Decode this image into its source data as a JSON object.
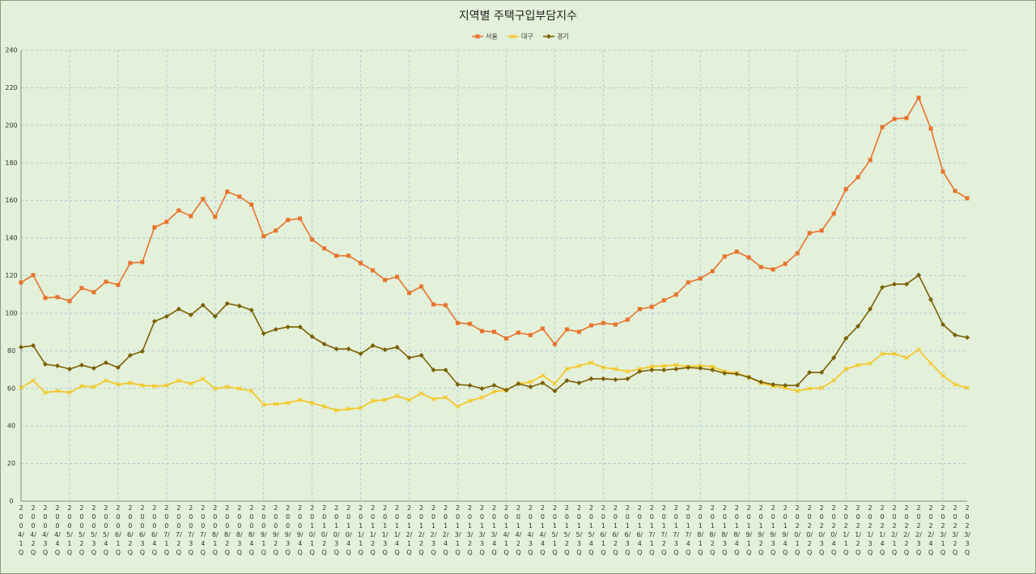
{
  "chart_data": {
    "type": "line",
    "title": "지역별 주택구입부담지수",
    "categories": [
      "2004/1Q",
      "2004/2Q",
      "2004/3Q",
      "2004/4Q",
      "2005/1Q",
      "2005/2Q",
      "2005/3Q",
      "2005/4Q",
      "2006/1Q",
      "2006/2Q",
      "2006/3Q",
      "2006/4Q",
      "2007/1Q",
      "2007/2Q",
      "2007/3Q",
      "2007/4Q",
      "2008/1Q",
      "2008/2Q",
      "2008/3Q",
      "2008/4Q",
      "2009/1Q",
      "2009/2Q",
      "2009/3Q",
      "2009/4Q",
      "2010/1Q",
      "2010/2Q",
      "2010/3Q",
      "2010/4Q",
      "2011/1Q",
      "2011/2Q",
      "2011/3Q",
      "2011/4Q",
      "2012/1Q",
      "2012/2Q",
      "2012/3Q",
      "2012/4Q",
      "2013/1Q",
      "2013/2Q",
      "2013/3Q",
      "2013/4Q",
      "2014/1Q",
      "2014/2Q",
      "2014/3Q",
      "2014/4Q",
      "2015/1Q",
      "2015/2Q",
      "2015/3Q",
      "2015/4Q",
      "2016/1Q",
      "2016/2Q",
      "2016/3Q",
      "2016/4Q",
      "2017/1Q",
      "2017/2Q",
      "2017/3Q",
      "2017/4Q",
      "2018/1Q",
      "2018/2Q",
      "2018/3Q",
      "2018/4Q",
      "2019/1Q",
      "2019/2Q",
      "2019/3Q",
      "2019/4Q",
      "2020/1Q",
      "2020/2Q",
      "2020/3Q",
      "2020/4Q",
      "2021/1Q",
      "2021/2Q",
      "2021/3Q",
      "2021/4Q",
      "2022/1Q",
      "2022/2Q",
      "2022/3Q",
      "2022/4Q",
      "2023/1Q",
      "2023/2Q",
      "2023/3Q"
    ],
    "series": [
      {
        "name": "서울",
        "color": "#e8732a",
        "marker": "square",
        "values": [
          116.4,
          120.3,
          108.2,
          108.6,
          106.5,
          113.4,
          111.2,
          116.8,
          115.1,
          126.7,
          127.2,
          145.7,
          148.7,
          154.7,
          151.7,
          160.8,
          151.3,
          164.7,
          162.1,
          157.8,
          141,
          144,
          149.6,
          150.4,
          139.2,
          134.5,
          130.6,
          130.6,
          126.7,
          122.8,
          117.7,
          119.4,
          110.8,
          114.2,
          104.7,
          104.3,
          94.8,
          94.4,
          90.5,
          90.1,
          86.6,
          89.7,
          88.4,
          91.8,
          83.6,
          91.4,
          90.1,
          93.5,
          94.8,
          94,
          96.6,
          102.2,
          103.4,
          106.9,
          109.9,
          116.4,
          118.5,
          122.4,
          130.2,
          132.8,
          129.7,
          124.6,
          123.3,
          126.3,
          131.9,
          142.7,
          144,
          153,
          166,
          172.4,
          181.5,
          199.1,
          203.4,
          203.9,
          214.7,
          198.3,
          175.4,
          165.1,
          161.2
        ]
      },
      {
        "name": "대구",
        "color": "#f5c518",
        "marker": "x",
        "values": [
          60.3,
          64.2,
          57.8,
          58.6,
          57.8,
          61.2,
          60.8,
          64.2,
          62.1,
          62.9,
          61.6,
          61.2,
          61.6,
          64.2,
          62.5,
          65.1,
          59.9,
          60.8,
          59.9,
          58.6,
          51.3,
          51.7,
          52.2,
          53.9,
          52.2,
          50.4,
          48.3,
          49.1,
          49.6,
          53.4,
          53.9,
          56,
          53.9,
          57.3,
          54.3,
          55.2,
          50.4,
          53.4,
          55.2,
          58.2,
          59.1,
          62.5,
          63.4,
          66.8,
          62.5,
          70.3,
          72,
          73.7,
          71.1,
          70.3,
          69,
          70.3,
          71.6,
          72,
          72.4,
          71.6,
          72,
          71.6,
          69,
          68.1,
          65.9,
          62.9,
          61.2,
          60.3,
          58.6,
          59.9,
          60.3,
          64.2,
          70.3,
          72.4,
          73.3,
          78.4,
          78.4,
          76.3,
          80.6,
          73.3,
          66.8,
          62.1,
          60.3
        ]
      },
      {
        "name": "경기",
        "color": "#7a6000",
        "marker": "diamond",
        "values": [
          81.9,
          82.8,
          72.8,
          72,
          70.3,
          72.4,
          70.7,
          73.7,
          71.1,
          77.6,
          79.7,
          95.7,
          98.3,
          102.2,
          99.1,
          104.3,
          98.3,
          105.2,
          103.9,
          101.7,
          89.2,
          91.4,
          92.7,
          92.7,
          87.5,
          83.6,
          81,
          81,
          78.4,
          82.8,
          80.6,
          81.9,
          76.3,
          77.6,
          69.8,
          69.8,
          62.1,
          61.6,
          59.9,
          61.6,
          59.1,
          62.5,
          60.8,
          62.9,
          58.6,
          64.2,
          62.9,
          65.1,
          65.1,
          64.7,
          65.1,
          69,
          69.8,
          69.8,
          70.3,
          71.1,
          70.7,
          69.8,
          68.1,
          67.7,
          65.9,
          63.4,
          62.1,
          61.6,
          61.6,
          68.5,
          68.5,
          76.3,
          86.6,
          93.1,
          102.2,
          113.8,
          115.5,
          115.5,
          120.3,
          107.3,
          94,
          88.4,
          87.1
        ]
      }
    ],
    "ylim": [
      0,
      240
    ],
    "yticks": [
      0,
      20,
      40,
      60,
      80,
      100,
      120,
      140,
      160,
      180,
      200,
      220,
      240
    ],
    "grid": true,
    "legend": "top"
  }
}
